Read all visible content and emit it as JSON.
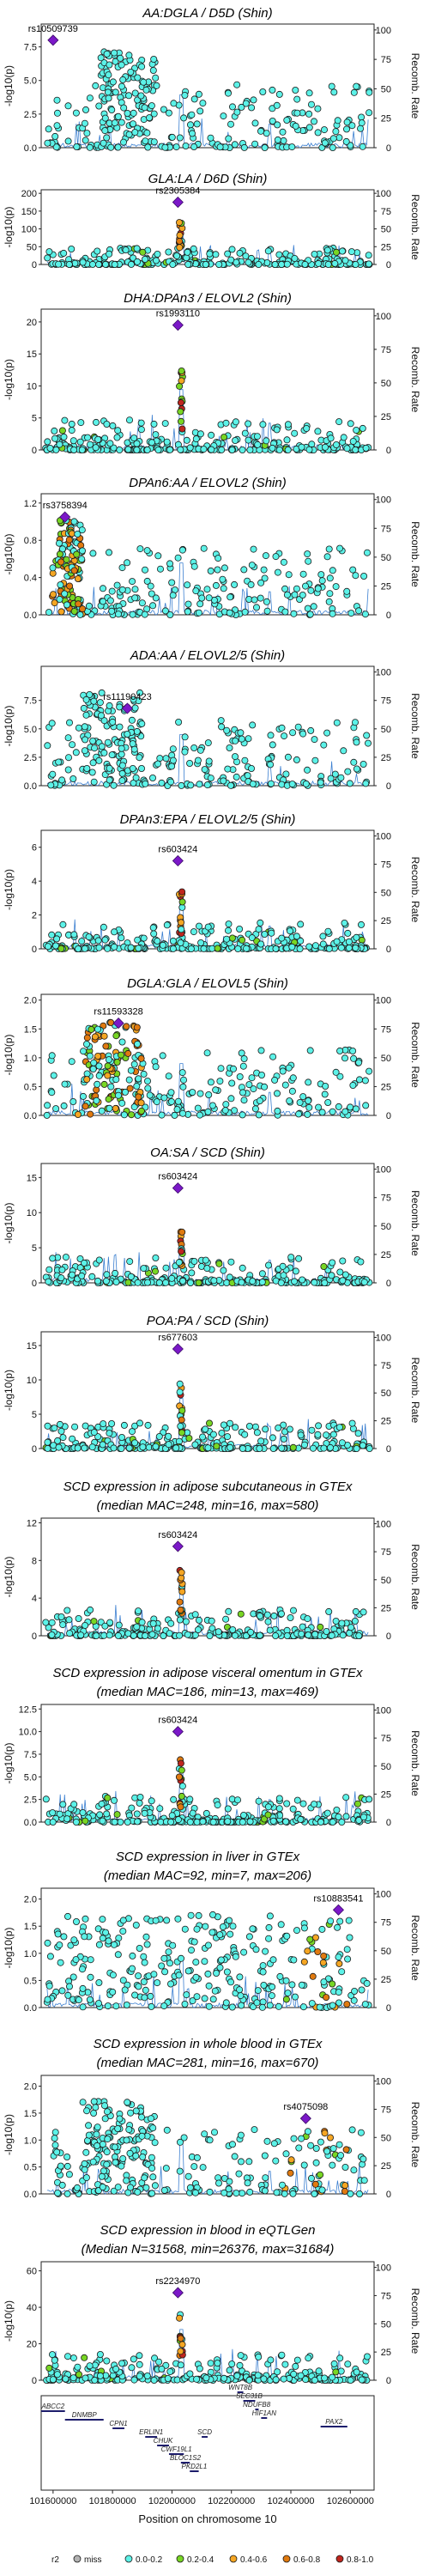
{
  "chart_data": [
    {
      "type": "scatter",
      "title": [
        "AA:DGLA / D5D (Shin)"
      ],
      "ylabel": "-log10(p)",
      "y2label": "Recomb. Rate",
      "ylim": [
        0,
        9.2
      ],
      "yticks": [
        "0.0",
        "2.5",
        "5.0",
        "7.5"
      ],
      "yticks_values": [
        0,
        2.5,
        5,
        7.5
      ],
      "y2ticks": [
        0,
        25,
        50,
        75,
        100
      ],
      "lead": {
        "snp": "rs10509739",
        "x": 101600000,
        "y": 8.0
      },
      "profile": {
        "pattern": "spread",
        "dense_x": [
          101760000,
          101950000
        ],
        "peak_x": null,
        "ld": "cyan"
      }
    },
    {
      "type": "scatter",
      "title": [
        "GLA:LA / D6D (Shin)"
      ],
      "ylabel": "-log10(p)",
      "y2label": "Recomb. Rate",
      "ylim": [
        0,
        210
      ],
      "yticks": [
        "0",
        "50",
        "100",
        "150",
        "200"
      ],
      "yticks_values": [
        0,
        50,
        100,
        150,
        200
      ],
      "y2ticks": [
        0,
        25,
        50,
        75,
        100
      ],
      "lead": {
        "snp": "rs2305384",
        "x": 102020000,
        "y": 175
      },
      "profile": {
        "pattern": "low",
        "peak_x": 102030000,
        "ld": "mixed"
      }
    },
    {
      "type": "scatter",
      "title": [
        "DHA:DPAn3 / ELOVL2 (Shin)"
      ],
      "ylabel": "-log10(p)",
      "y2label": "Recomb. Rate",
      "ylim": [
        0,
        22
      ],
      "yticks": [
        "0",
        "5",
        "10",
        "15",
        "20"
      ],
      "yticks_values": [
        0,
        5,
        10,
        15,
        20
      ],
      "y2ticks": [
        0,
        25,
        50,
        75,
        100
      ],
      "lead": {
        "snp": "rs1993110",
        "x": 102020000,
        "y": 19.5
      },
      "profile": {
        "pattern": "low",
        "peak_x": 102030000,
        "ld": "mixed"
      }
    },
    {
      "type": "scatter",
      "title": [
        "DPAn6:AA / ELOVL2 (Shin)"
      ],
      "ylabel": "-log10(p)",
      "y2label": "Recomb. Rate",
      "ylim": [
        0,
        1.3
      ],
      "yticks": [
        "0.0",
        "0.4",
        "0.8",
        "1.2"
      ],
      "yticks_values": [
        0,
        0.4,
        0.8,
        1.2
      ],
      "y2ticks": [
        0,
        25,
        50,
        75,
        100
      ],
      "lead": {
        "snp": "rs3758394",
        "x": 101640000,
        "y": 1.05
      },
      "profile": {
        "pattern": "spread",
        "dense_x": [
          101620000,
          101700000
        ],
        "peak_x": null,
        "ld": "leftwarm"
      }
    },
    {
      "type": "scatter",
      "title": [
        "ADA:AA / ELOVL2/5 (Shin)"
      ],
      "ylabel": "-log10(p)",
      "y2label": "Recomb. Rate",
      "ylim": [
        0,
        10.5
      ],
      "yticks": [
        "0.0",
        "2.5",
        "5.0",
        "7.5"
      ],
      "yticks_values": [
        0,
        2.5,
        5,
        7.5
      ],
      "y2ticks": [
        0,
        25,
        50,
        75,
        100
      ],
      "lead": {
        "snp": "rs11190423",
        "x": 101850000,
        "y": 6.8
      },
      "profile": {
        "pattern": "spread",
        "dense_x": [
          101700000,
          101900000
        ],
        "peak_x": null,
        "ld": "cyan"
      }
    },
    {
      "type": "scatter",
      "title": [
        "DPAn3:EPA / ELOVL2/5 (Shin)"
      ],
      "ylabel": "-log10(p)",
      "y2label": "Recomb. Rate",
      "ylim": [
        0,
        7
      ],
      "yticks": [
        "0",
        "2",
        "4",
        "6"
      ],
      "yticks_values": [
        0,
        2,
        4,
        6
      ],
      "y2ticks": [
        0,
        25,
        50,
        75,
        100
      ],
      "lead": {
        "snp": "rs603424",
        "x": 102020000,
        "y": 5.2
      },
      "profile": {
        "pattern": "low",
        "peak_x": 102030000,
        "ld": "mixed"
      }
    },
    {
      "type": "scatter",
      "title": [
        "DGLA:GLA / ELOVL5 (Shin)"
      ],
      "ylabel": "-log10(p)",
      "y2label": "Recomb. Rate",
      "ylim": [
        0,
        2.1
      ],
      "yticks": [
        "0.0",
        "0.5",
        "1.0",
        "1.5",
        "2.0"
      ],
      "yticks_values": [
        0,
        0.5,
        1,
        1.5,
        2
      ],
      "y2ticks": [
        0,
        25,
        50,
        75,
        100
      ],
      "lead": {
        "snp": "rs11593328",
        "x": 101820000,
        "y": 1.6
      },
      "profile": {
        "pattern": "spread",
        "dense_x": [
          101700000,
          101900000
        ],
        "peak_x": null,
        "ld": "greenwarm"
      }
    },
    {
      "type": "scatter",
      "title": [
        "OA:SA / SCD (Shin)"
      ],
      "ylabel": "-log10(p)",
      "y2label": "Recomb. Rate",
      "ylim": [
        0,
        17
      ],
      "yticks": [
        "0",
        "5",
        "10",
        "15"
      ],
      "yticks_values": [
        0,
        5,
        10,
        15
      ],
      "y2ticks": [
        0,
        25,
        50,
        75,
        100
      ],
      "lead": {
        "snp": "rs603424",
        "x": 102020000,
        "y": 13.5
      },
      "profile": {
        "pattern": "low",
        "peak_x": 102030000,
        "ld": "mixed"
      }
    },
    {
      "type": "scatter",
      "title": [
        "POA:PA / SCD (Shin)"
      ],
      "ylabel": "-log10(p)",
      "y2label": "Recomb. Rate",
      "ylim": [
        0,
        17
      ],
      "yticks": [
        "0",
        "5",
        "10",
        "15"
      ],
      "yticks_values": [
        0,
        5,
        10,
        15
      ],
      "y2ticks": [
        0,
        25,
        50,
        75,
        100
      ],
      "lead": {
        "snp": "rs677603",
        "x": 102020000,
        "y": 14.5
      },
      "profile": {
        "pattern": "low",
        "peak_x": 102030000,
        "ld": "mixed"
      }
    },
    {
      "type": "scatter",
      "title": [
        "SCD expression in adipose subcutaneous in GTEx",
        "(median MAC=248, min=16, max=580)"
      ],
      "ylabel": "-log10(p)",
      "y2label": "Recomb. Rate",
      "ylim": [
        0,
        12.5
      ],
      "yticks": [
        "0",
        "4",
        "8",
        "12"
      ],
      "yticks_values": [
        0,
        4,
        8,
        12
      ],
      "y2ticks": [
        0,
        25,
        50,
        75,
        100
      ],
      "lead": {
        "snp": "rs603424",
        "x": 102020000,
        "y": 9.5
      },
      "profile": {
        "pattern": "low",
        "peak_x": 102030000,
        "ld": "mixed"
      }
    },
    {
      "type": "scatter",
      "title": [
        "SCD expression in adipose visceral omentum in GTEx",
        "(median MAC=186, min=13, max=469)"
      ],
      "ylabel": "-log10(p)",
      "y2label": "Recomb. Rate",
      "ylim": [
        0,
        13
      ],
      "yticks": [
        "0.0",
        "2.5",
        "5.0",
        "7.5",
        "10.0",
        "12.5"
      ],
      "yticks_values": [
        0,
        2.5,
        5,
        7.5,
        10,
        12.5
      ],
      "y2ticks": [
        0,
        25,
        50,
        75,
        100
      ],
      "lead": {
        "snp": "rs603424",
        "x": 102020000,
        "y": 10.0
      },
      "profile": {
        "pattern": "low",
        "peak_x": 102030000,
        "ld": "mixed"
      }
    },
    {
      "type": "scatter",
      "title": [
        "SCD expression in liver in GTEx",
        "(median MAC=92, min=7, max=206)"
      ],
      "ylabel": "-log10(p)",
      "y2label": "Recomb. Rate",
      "ylim": [
        0,
        2.2
      ],
      "yticks": [
        "0.0",
        "0.5",
        "1.0",
        "1.5",
        "2.0"
      ],
      "yticks_values": [
        0,
        0.5,
        1,
        1.5,
        2
      ],
      "y2ticks": [
        0,
        25,
        50,
        75,
        100
      ],
      "lead": {
        "snp": "rs10883541",
        "x": 102560000,
        "y": 1.8
      },
      "profile": {
        "pattern": "spread",
        "dense_x": [
          101600000,
          102600000
        ],
        "peak_x": null,
        "ld": "rightwarm"
      }
    },
    {
      "type": "scatter",
      "title": [
        "SCD expression in whole blood in GTEx",
        "(median MAC=281, min=16, max=670)"
      ],
      "ylabel": "-log10(p)",
      "y2label": "Recomb. Rate",
      "ylim": [
        0,
        2.2
      ],
      "yticks": [
        "0.0",
        "0.5",
        "1.0",
        "1.5",
        "2.0"
      ],
      "yticks_values": [
        0,
        0.5,
        1,
        1.5,
        2
      ],
      "y2ticks": [
        0,
        25,
        50,
        75,
        100
      ],
      "lead": {
        "snp": "rs4075098",
        "x": 102450000,
        "y": 1.4
      },
      "profile": {
        "pattern": "spread",
        "dense_x": [
          101700000,
          101950000
        ],
        "peak_x": null,
        "ld": "rightwarm"
      }
    },
    {
      "type": "scatter",
      "title": [
        "SCD expression in blood in eQTLGen",
        "(Median N=31568, min=26376, max=31684)"
      ],
      "ylabel": "-log10(p)",
      "y2label": "Recomb. Rate",
      "ylim": [
        0,
        65
      ],
      "yticks": [
        "0",
        "20",
        "40",
        "60"
      ],
      "yticks_values": [
        0,
        20,
        40,
        60
      ],
      "y2ticks": [
        0,
        25,
        50,
        75,
        100
      ],
      "lead": {
        "snp": "rs2234970",
        "x": 102020000,
        "y": 48
      },
      "profile": {
        "pattern": "low",
        "peak_x": 102030000,
        "ld": "mixed"
      }
    }
  ],
  "x_axis": {
    "label": "Position on chromosome 10",
    "range": [
      101560000,
      102680000
    ],
    "ticks": [
      101600000,
      101800000,
      102000000,
      102200000,
      102400000,
      102600000
    ],
    "tick_labels": [
      "101600000",
      "101800000",
      "102000000",
      "102200000",
      "102400000",
      "102600000"
    ]
  },
  "genes": [
    {
      "name": "ABCC2",
      "start": 101560000,
      "end": 101640000
    },
    {
      "name": "DNMBP",
      "start": 101640000,
      "end": 101770000
    },
    {
      "name": "CPN1",
      "start": 101800000,
      "end": 101840000
    },
    {
      "name": "ERLIN1",
      "start": 101910000,
      "end": 101950000
    },
    {
      "name": "CHUK",
      "start": 101950000,
      "end": 101990000
    },
    {
      "name": "CWF19L1",
      "start": 101990000,
      "end": 102040000
    },
    {
      "name": "BLOC1S2",
      "start": 102030000,
      "end": 102060000
    },
    {
      "name": "PKD2L1",
      "start": 102060000,
      "end": 102090000
    },
    {
      "name": "SCD",
      "start": 102100000,
      "end": 102120000
    },
    {
      "name": "WNT8B",
      "start": 102220000,
      "end": 102240000
    },
    {
      "name": "SEC31B",
      "start": 102240000,
      "end": 102280000
    },
    {
      "name": "NDUFB8",
      "start": 102280000,
      "end": 102290000
    },
    {
      "name": "HIF1AN",
      "start": 102300000,
      "end": 102320000
    },
    {
      "name": "PAX2",
      "start": 102500000,
      "end": 102590000
    }
  ],
  "legend": {
    "title": "r2",
    "items": [
      {
        "label": "miss",
        "color": "#b3b3b3"
      },
      {
        "label": "0.0-0.2",
        "color": "#5cf2e8"
      },
      {
        "label": "0.2-0.4",
        "color": "#78d624"
      },
      {
        "label": "0.4-0.6",
        "color": "#f5a623"
      },
      {
        "label": "0.6-0.8",
        "color": "#e07a10"
      },
      {
        "label": "0.8-1.0",
        "color": "#c0261e"
      }
    ],
    "lead_color": "#7b18c8"
  },
  "colors": {
    "recomb_line": "#3b7fd0",
    "frame": "#222222"
  }
}
